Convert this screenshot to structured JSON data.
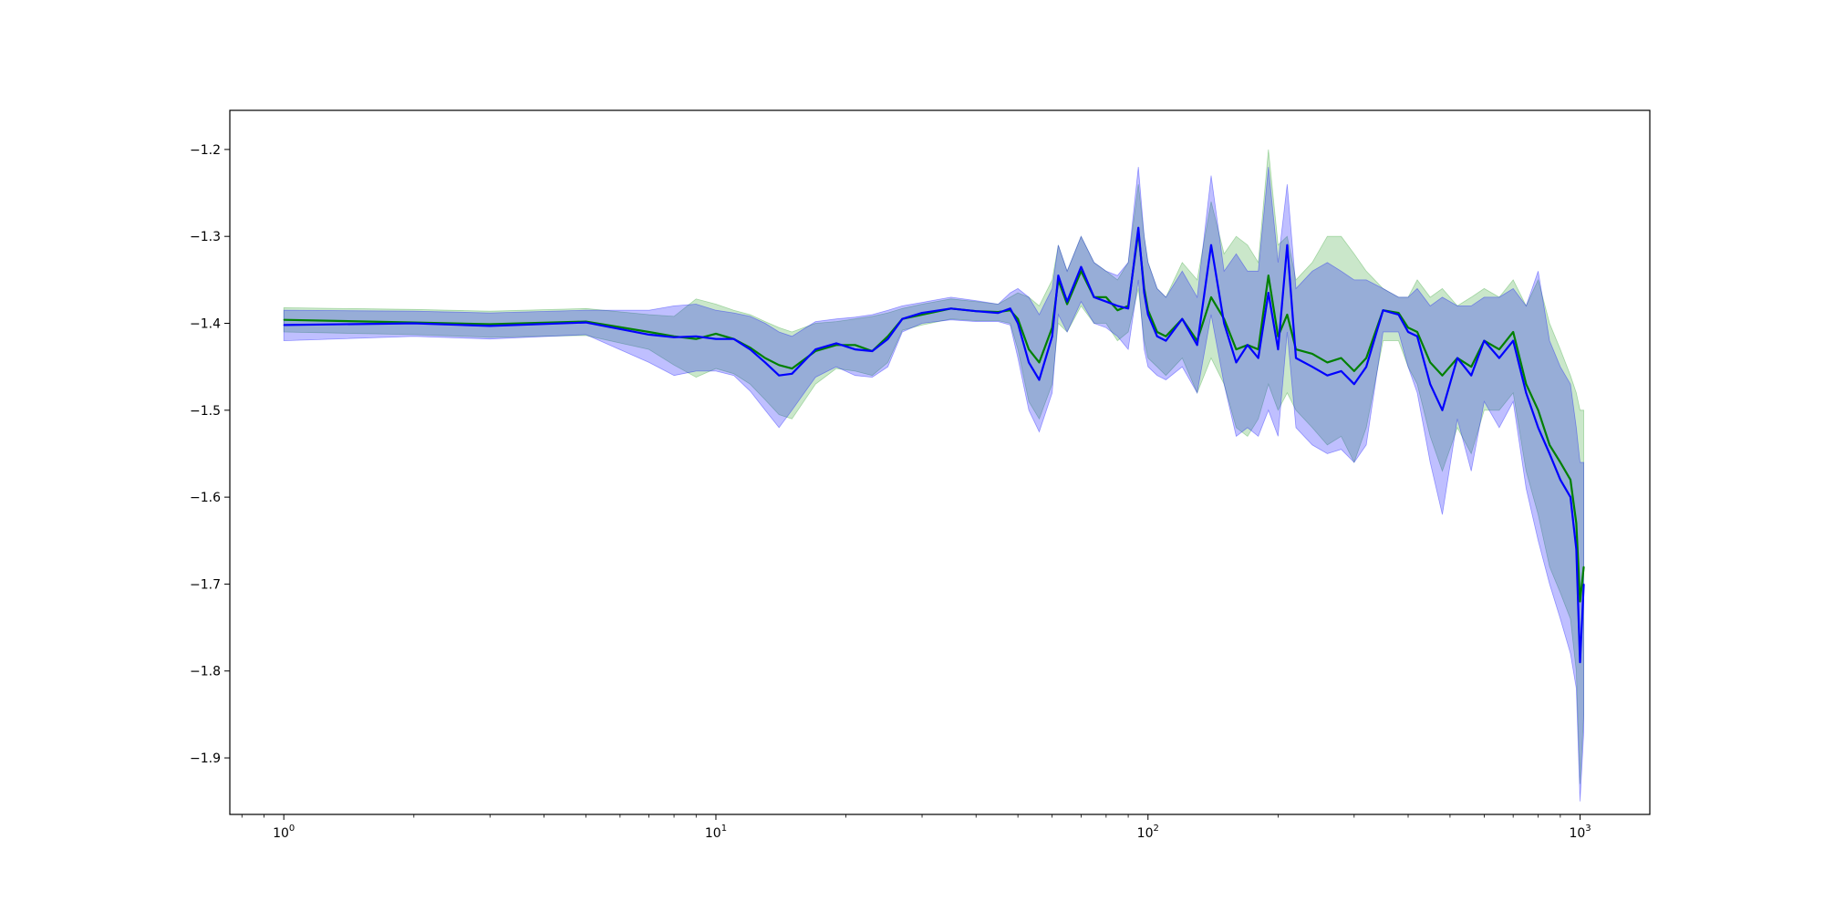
{
  "chart_data": {
    "type": "line",
    "title": "",
    "xlabel": "",
    "ylabel": "",
    "xscale": "log",
    "xlim": [
      0.75,
      1450
    ],
    "ylim": [
      -1.965,
      -1.155
    ],
    "grid": false,
    "x_ticks": [
      {
        "value": 1,
        "base": "10",
        "exp": "0"
      },
      {
        "value": 10,
        "base": "10",
        "exp": "1"
      },
      {
        "value": 100,
        "base": "10",
        "exp": "2"
      },
      {
        "value": 1000,
        "base": "10",
        "exp": "3"
      }
    ],
    "y_ticks": [
      {
        "value": -1.2,
        "label": "−1.2"
      },
      {
        "value": -1.3,
        "label": "−1.3"
      },
      {
        "value": -1.4,
        "label": "−1.4"
      },
      {
        "value": -1.5,
        "label": "−1.5"
      },
      {
        "value": -1.6,
        "label": "−1.6"
      },
      {
        "value": -1.7,
        "label": "−1.7"
      },
      {
        "value": -1.8,
        "label": "−1.8"
      },
      {
        "value": -1.9,
        "label": "−1.9"
      }
    ],
    "series": [
      {
        "color": "#008000",
        "band_color": "#2ca02c",
        "x": [
          1,
          2,
          3,
          5,
          7,
          8,
          9,
          10,
          11,
          12,
          13,
          14,
          15,
          17,
          19,
          21,
          23,
          25,
          27,
          30,
          35,
          40,
          45,
          48,
          50,
          53,
          56,
          60,
          62,
          65,
          70,
          75,
          80,
          85,
          90,
          95,
          98,
          100,
          105,
          110,
          120,
          130,
          140,
          150,
          160,
          170,
          180,
          190,
          200,
          210,
          220,
          240,
          260,
          280,
          300,
          320,
          350,
          380,
          400,
          420,
          450,
          480,
          520,
          560,
          600,
          650,
          700,
          750,
          800,
          850,
          900,
          950,
          980,
          1000,
          1020
        ],
        "y": [
          -1.396,
          -1.399,
          -1.401,
          -1.398,
          -1.41,
          -1.415,
          -1.418,
          -1.412,
          -1.418,
          -1.428,
          -1.44,
          -1.448,
          -1.452,
          -1.432,
          -1.425,
          -1.425,
          -1.432,
          -1.415,
          -1.395,
          -1.39,
          -1.383,
          -1.386,
          -1.387,
          -1.385,
          -1.395,
          -1.43,
          -1.445,
          -1.405,
          -1.35,
          -1.378,
          -1.34,
          -1.37,
          -1.37,
          -1.385,
          -1.38,
          -1.295,
          -1.36,
          -1.385,
          -1.41,
          -1.415,
          -1.395,
          -1.42,
          -1.37,
          -1.395,
          -1.43,
          -1.425,
          -1.43,
          -1.345,
          -1.415,
          -1.39,
          -1.43,
          -1.435,
          -1.445,
          -1.44,
          -1.455,
          -1.44,
          -1.385,
          -1.388,
          -1.405,
          -1.41,
          -1.445,
          -1.46,
          -1.44,
          -1.45,
          -1.42,
          -1.43,
          -1.41,
          -1.47,
          -1.5,
          -1.54,
          -1.56,
          -1.58,
          -1.63,
          -1.72,
          -1.68
        ],
        "upper": [
          -1.382,
          -1.384,
          -1.386,
          -1.383,
          -1.39,
          -1.392,
          -1.372,
          -1.378,
          -1.385,
          -1.39,
          -1.398,
          -1.405,
          -1.41,
          -1.4,
          -1.398,
          -1.395,
          -1.392,
          -1.388,
          -1.383,
          -1.378,
          -1.372,
          -1.375,
          -1.378,
          -1.37,
          -1.365,
          -1.37,
          -1.38,
          -1.35,
          -1.31,
          -1.34,
          -1.3,
          -1.33,
          -1.34,
          -1.35,
          -1.33,
          -1.24,
          -1.3,
          -1.33,
          -1.36,
          -1.37,
          -1.33,
          -1.35,
          -1.26,
          -1.32,
          -1.3,
          -1.31,
          -1.33,
          -1.2,
          -1.31,
          -1.3,
          -1.35,
          -1.33,
          -1.3,
          -1.3,
          -1.32,
          -1.34,
          -1.36,
          -1.37,
          -1.37,
          -1.35,
          -1.37,
          -1.36,
          -1.38,
          -1.37,
          -1.36,
          -1.37,
          -1.35,
          -1.38,
          -1.35,
          -1.4,
          -1.43,
          -1.46,
          -1.48,
          -1.5,
          -1.5
        ],
        "lower": [
          -1.41,
          -1.413,
          -1.416,
          -1.414,
          -1.43,
          -1.448,
          -1.462,
          -1.452,
          -1.458,
          -1.47,
          -1.488,
          -1.505,
          -1.51,
          -1.47,
          -1.452,
          -1.455,
          -1.46,
          -1.445,
          -1.408,
          -1.402,
          -1.395,
          -1.397,
          -1.397,
          -1.4,
          -1.43,
          -1.49,
          -1.51,
          -1.47,
          -1.4,
          -1.41,
          -1.38,
          -1.4,
          -1.4,
          -1.42,
          -1.41,
          -1.36,
          -1.42,
          -1.44,
          -1.45,
          -1.46,
          -1.44,
          -1.48,
          -1.44,
          -1.47,
          -1.52,
          -1.53,
          -1.51,
          -1.47,
          -1.5,
          -1.48,
          -1.5,
          -1.52,
          -1.54,
          -1.53,
          -1.56,
          -1.52,
          -1.42,
          -1.42,
          -1.45,
          -1.47,
          -1.53,
          -1.57,
          -1.52,
          -1.55,
          -1.5,
          -1.5,
          -1.48,
          -1.57,
          -1.62,
          -1.68,
          -1.71,
          -1.74,
          -1.8,
          -1.93,
          -1.85
        ]
      },
      {
        "color": "#0000ff",
        "band_color": "#0000ff",
        "x": [
          1,
          2,
          3,
          5,
          7,
          8,
          9,
          10,
          11,
          12,
          13,
          14,
          15,
          17,
          19,
          21,
          23,
          25,
          27,
          30,
          35,
          40,
          45,
          48,
          50,
          53,
          56,
          60,
          62,
          65,
          70,
          75,
          80,
          85,
          90,
          95,
          98,
          100,
          105,
          110,
          120,
          130,
          140,
          150,
          160,
          170,
          180,
          190,
          200,
          210,
          220,
          240,
          260,
          280,
          300,
          320,
          350,
          380,
          400,
          420,
          450,
          480,
          520,
          560,
          600,
          650,
          700,
          750,
          800,
          850,
          900,
          950,
          980,
          1000,
          1020
        ],
        "y": [
          -1.402,
          -1.4,
          -1.403,
          -1.399,
          -1.413,
          -1.416,
          -1.415,
          -1.418,
          -1.418,
          -1.43,
          -1.445,
          -1.46,
          -1.458,
          -1.43,
          -1.423,
          -1.43,
          -1.432,
          -1.418,
          -1.395,
          -1.388,
          -1.383,
          -1.386,
          -1.388,
          -1.383,
          -1.4,
          -1.445,
          -1.465,
          -1.415,
          -1.345,
          -1.375,
          -1.335,
          -1.37,
          -1.375,
          -1.38,
          -1.383,
          -1.29,
          -1.365,
          -1.39,
          -1.415,
          -1.42,
          -1.395,
          -1.425,
          -1.31,
          -1.4,
          -1.445,
          -1.425,
          -1.44,
          -1.365,
          -1.43,
          -1.31,
          -1.44,
          -1.45,
          -1.46,
          -1.455,
          -1.47,
          -1.45,
          -1.385,
          -1.39,
          -1.41,
          -1.415,
          -1.47,
          -1.5,
          -1.44,
          -1.46,
          -1.42,
          -1.44,
          -1.42,
          -1.48,
          -1.52,
          -1.55,
          -1.58,
          -1.6,
          -1.66,
          -1.79,
          -1.7
        ],
        "upper": [
          -1.385,
          -1.386,
          -1.388,
          -1.385,
          -1.385,
          -1.38,
          -1.378,
          -1.385,
          -1.388,
          -1.392,
          -1.4,
          -1.41,
          -1.415,
          -1.398,
          -1.395,
          -1.393,
          -1.39,
          -1.385,
          -1.38,
          -1.376,
          -1.37,
          -1.374,
          -1.378,
          -1.365,
          -1.36,
          -1.37,
          -1.39,
          -1.36,
          -1.31,
          -1.34,
          -1.3,
          -1.33,
          -1.34,
          -1.345,
          -1.33,
          -1.22,
          -1.3,
          -1.33,
          -1.36,
          -1.37,
          -1.34,
          -1.37,
          -1.23,
          -1.34,
          -1.32,
          -1.34,
          -1.34,
          -1.22,
          -1.33,
          -1.24,
          -1.36,
          -1.34,
          -1.33,
          -1.34,
          -1.35,
          -1.35,
          -1.36,
          -1.37,
          -1.37,
          -1.36,
          -1.38,
          -1.37,
          -1.38,
          -1.38,
          -1.37,
          -1.37,
          -1.36,
          -1.38,
          -1.34,
          -1.42,
          -1.45,
          -1.47,
          -1.52,
          -1.56,
          -1.56
        ],
        "lower": [
          -1.42,
          -1.415,
          -1.418,
          -1.413,
          -1.445,
          -1.46,
          -1.455,
          -1.455,
          -1.46,
          -1.478,
          -1.5,
          -1.52,
          -1.5,
          -1.462,
          -1.45,
          -1.46,
          -1.462,
          -1.45,
          -1.41,
          -1.4,
          -1.396,
          -1.398,
          -1.398,
          -1.402,
          -1.44,
          -1.5,
          -1.525,
          -1.48,
          -1.39,
          -1.41,
          -1.375,
          -1.4,
          -1.405,
          -1.415,
          -1.43,
          -1.35,
          -1.43,
          -1.45,
          -1.46,
          -1.465,
          -1.45,
          -1.48,
          -1.39,
          -1.47,
          -1.53,
          -1.52,
          -1.53,
          -1.5,
          -1.53,
          -1.41,
          -1.52,
          -1.54,
          -1.55,
          -1.545,
          -1.56,
          -1.54,
          -1.41,
          -1.41,
          -1.45,
          -1.48,
          -1.56,
          -1.62,
          -1.51,
          -1.57,
          -1.49,
          -1.52,
          -1.49,
          -1.59,
          -1.65,
          -1.7,
          -1.74,
          -1.78,
          -1.82,
          -1.95,
          -1.87
        ]
      }
    ]
  }
}
